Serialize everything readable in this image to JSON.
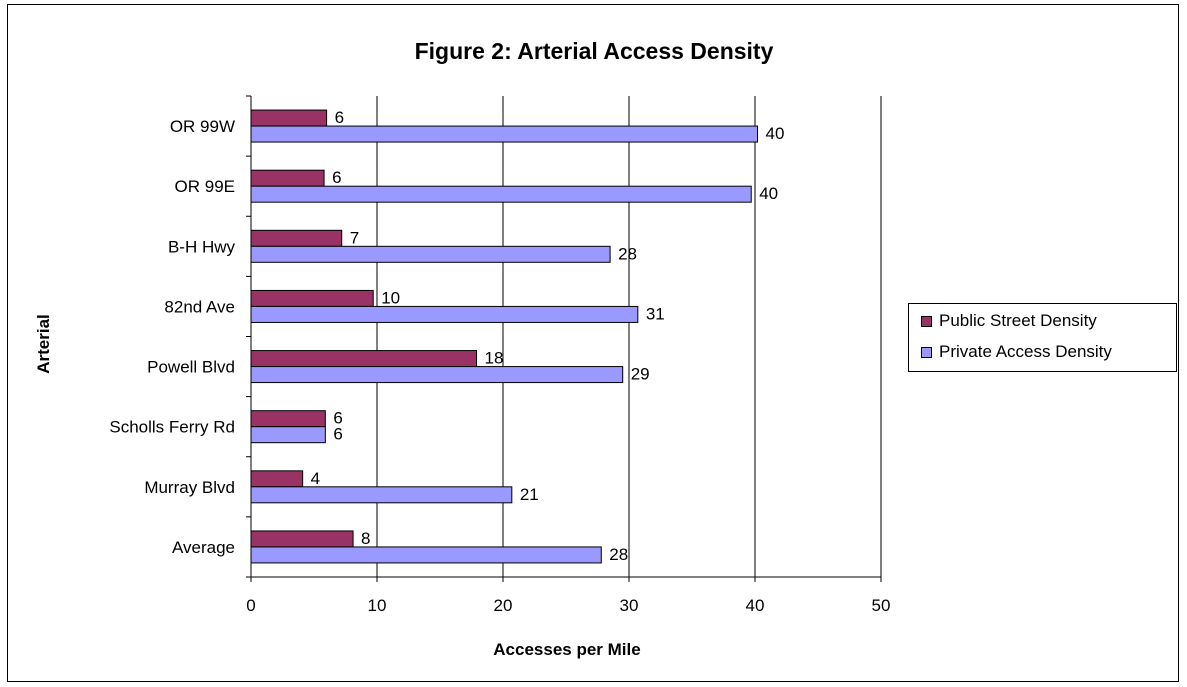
{
  "chart_data": {
    "type": "bar",
    "orientation": "horizontal",
    "title": "Figure 2: Arterial Access Density",
    "xlabel": "Accesses per Mile",
    "ylabel": "Arterial",
    "xlim": [
      0,
      50
    ],
    "xticks": [
      0,
      10,
      20,
      30,
      40,
      50
    ],
    "grid": true,
    "legend_position": "right",
    "categories": [
      "OR 99W",
      "OR 99E",
      "B-H Hwy",
      "82nd Ave",
      "Powell Blvd",
      "Scholls Ferry Rd",
      "Murray Blvd",
      "Average"
    ],
    "series": [
      {
        "name": "Public Street Density",
        "color": "#993366",
        "values": [
          6,
          5.8,
          7.2,
          9.7,
          17.9,
          5.9,
          4.1,
          8.1
        ],
        "labels": [
          "6",
          "6",
          "7",
          "10",
          "18",
          "6",
          "4",
          "8"
        ]
      },
      {
        "name": "Private Access Density",
        "color": "#9999ff",
        "values": [
          40.2,
          39.7,
          28.5,
          30.7,
          29.5,
          5.9,
          20.7,
          27.8
        ],
        "labels": [
          "40",
          "40",
          "28",
          "31",
          "29",
          "6",
          "21",
          "28"
        ]
      }
    ]
  }
}
